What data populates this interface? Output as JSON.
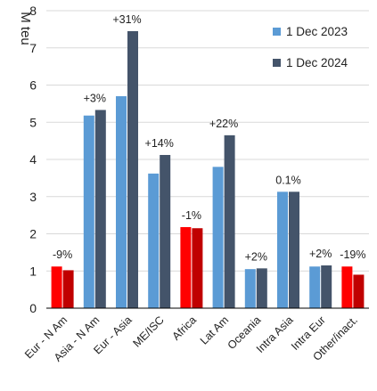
{
  "chart_data": {
    "type": "bar",
    "ylabel": "M teu",
    "ylim": [
      0,
      8
    ],
    "yticks": [
      0,
      1,
      2,
      3,
      4,
      5,
      6,
      7,
      8
    ],
    "grid": true,
    "legend_position": "top-right",
    "categories": [
      "Eur - N Am",
      "Asia - N Am",
      "Eur - Asia",
      "ME/ISC",
      "Africa",
      "Lat Am",
      "Oceania",
      "Intra Asia",
      "Intra Eur",
      "Other/inact."
    ],
    "series": [
      {
        "name": "1 Dec 2023",
        "values": [
          1.12,
          5.18,
          5.7,
          3.62,
          2.18,
          3.8,
          1.05,
          3.13,
          1.12,
          1.12
        ]
      },
      {
        "name": "1 Dec 2024",
        "values": [
          1.02,
          5.33,
          7.45,
          4.12,
          2.15,
          4.65,
          1.07,
          3.13,
          1.15,
          0.9
        ]
      }
    ],
    "annotations": [
      "-9%",
      "+3%",
      "+31%",
      "+14%",
      "-1%",
      "+22%",
      "+2%",
      "0.1%",
      "+2%",
      "-19%"
    ],
    "highlight_categories": [
      "Eur - N Am",
      "Africa",
      "Other/inact."
    ],
    "colors": {
      "series_2023": "#5b9bd5",
      "series_2024": "#44546a",
      "highlight_2023": "#ff0000",
      "highlight_2024": "#c00000",
      "grid": "#d9d9d9",
      "axis": "#000000"
    }
  }
}
